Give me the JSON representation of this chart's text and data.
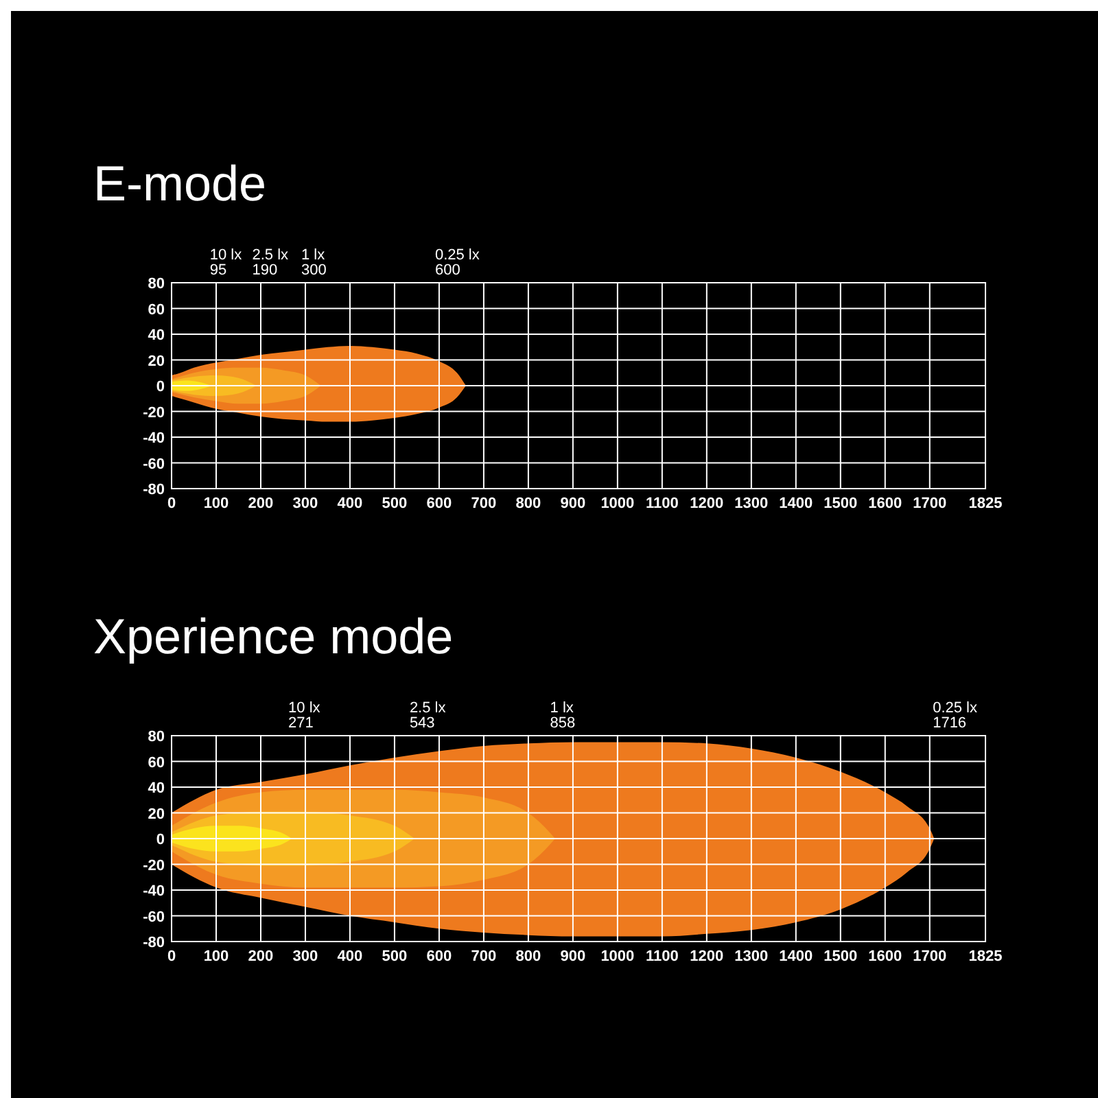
{
  "chart_data": [
    {
      "type": "area",
      "title": "E-mode",
      "xlim": [
        0,
        1825
      ],
      "xticks": [
        0,
        100,
        200,
        300,
        400,
        500,
        600,
        700,
        800,
        900,
        1000,
        1100,
        1200,
        1300,
        1400,
        1500,
        1600,
        1700,
        1825
      ],
      "ylim": [
        -80,
        80
      ],
      "yticks": [
        -80,
        -60,
        -40,
        -20,
        0,
        20,
        40,
        60,
        80
      ],
      "grid": true,
      "annotations": [
        "10 lx\n95",
        "2.5 lx\n190",
        "1 lx\n300",
        "0.25 lx\n600"
      ],
      "series": [
        {
          "color": "#ee7a1e",
          "x": [
            0,
            20,
            50,
            100,
            150,
            200,
            250,
            300,
            350,
            400,
            450,
            500,
            550,
            600,
            640,
            660
          ],
          "values": [
            8,
            10,
            14,
            18,
            21,
            24,
            26,
            28,
            30,
            31,
            30,
            28,
            25,
            19,
            10,
            0
          ]
        },
        {
          "color": "#ee7a1e",
          "x": [
            0,
            20,
            50,
            100,
            150,
            200,
            250,
            300,
            350,
            400,
            450,
            500,
            550,
            600,
            640,
            660
          ],
          "values": [
            -8,
            -10,
            -13,
            -18,
            -21,
            -24,
            -26,
            -27,
            -28,
            -28,
            -27,
            -25,
            -22,
            -17,
            -9,
            0
          ]
        },
        {
          "color": "#f49a24",
          "x": [
            0,
            50,
            100,
            150,
            200,
            250,
            300,
            335
          ],
          "values": [
            5,
            10,
            13,
            14,
            14,
            12,
            8,
            0
          ]
        },
        {
          "color": "#f49a24",
          "x": [
            0,
            50,
            100,
            150,
            200,
            250,
            300,
            335
          ],
          "values": [
            -5,
            -9,
            -12,
            -14,
            -14,
            -12,
            -8,
            0
          ]
        },
        {
          "color": "#f8bb22",
          "x": [
            0,
            50,
            100,
            150,
            190
          ],
          "values": [
            4,
            7,
            8,
            6,
            0
          ]
        },
        {
          "color": "#f8bb22",
          "x": [
            0,
            50,
            100,
            150,
            190
          ],
          "values": [
            -4,
            -7,
            -8,
            -6,
            0
          ]
        },
        {
          "color": "#fbe41c",
          "x": [
            0,
            30,
            60,
            90
          ],
          "values": [
            3,
            4,
            3,
            0
          ]
        },
        {
          "color": "#fbe31e",
          "x": [
            0,
            30,
            60,
            90
          ],
          "values": [
            -3,
            -4,
            -3,
            0
          ]
        }
      ]
    },
    {
      "type": "area",
      "title": "Xperience mode",
      "xlim": [
        0,
        1825
      ],
      "xticks": [
        0,
        100,
        200,
        300,
        400,
        500,
        600,
        700,
        800,
        900,
        1000,
        1100,
        1200,
        1300,
        1400,
        1500,
        1600,
        1700,
        1825
      ],
      "ylim": [
        -80,
        80
      ],
      "yticks": [
        -80,
        -60,
        -40,
        -20,
        0,
        20,
        40,
        60,
        80
      ],
      "grid": true,
      "annotations": [
        "10 lx\n271",
        "2.5 lx\n543",
        "1 lx\n858",
        "0.25 lx\n1716"
      ],
      "series": [
        {
          "color": "#ee7a1e",
          "x": [
            0,
            50,
            100,
            200,
            300,
            400,
            500,
            600,
            700,
            800,
            900,
            1000,
            1100,
            1200,
            1300,
            1400,
            1500,
            1600,
            1650,
            1700,
            1710
          ],
          "values": [
            20,
            30,
            38,
            44,
            50,
            57,
            63,
            68,
            72,
            74,
            75,
            75,
            75,
            74,
            70,
            63,
            52,
            36,
            25,
            8,
            0
          ]
        },
        {
          "color": "#ee7a1e",
          "x": [
            0,
            50,
            100,
            200,
            300,
            400,
            500,
            600,
            700,
            800,
            900,
            1000,
            1100,
            1200,
            1300,
            1400,
            1500,
            1600,
            1650,
            1700,
            1710
          ],
          "values": [
            -20,
            -30,
            -38,
            -46,
            -53,
            -60,
            -65,
            -70,
            -73,
            -75,
            -76,
            -76,
            -76,
            -74,
            -71,
            -65,
            -55,
            -38,
            -26,
            -8,
            0
          ]
        },
        {
          "color": "#f49a24",
          "x": [
            0,
            100,
            200,
            300,
            400,
            500,
            600,
            700,
            800,
            850,
            860
          ],
          "values": [
            10,
            28,
            36,
            38,
            38,
            38,
            36,
            32,
            20,
            4,
            0
          ]
        },
        {
          "color": "#f49a24",
          "x": [
            0,
            100,
            200,
            300,
            400,
            500,
            600,
            700,
            800,
            850,
            860
          ],
          "values": [
            -10,
            -28,
            -35,
            -38,
            -38,
            -38,
            -37,
            -32,
            -20,
            -4,
            0
          ]
        },
        {
          "color": "#f8bb22",
          "x": [
            0,
            100,
            200,
            300,
            400,
            500,
            545
          ],
          "values": [
            5,
            18,
            21,
            21,
            18,
            10,
            0
          ]
        },
        {
          "color": "#f8bb22",
          "x": [
            0,
            100,
            200,
            300,
            400,
            500,
            545
          ],
          "values": [
            -5,
            -18,
            -21,
            -21,
            -18,
            -10,
            0
          ]
        },
        {
          "color": "#fbe41c",
          "x": [
            0,
            50,
            100,
            150,
            200,
            250,
            270
          ],
          "values": [
            3,
            8,
            10,
            10,
            8,
            4,
            0
          ]
        },
        {
          "color": "#fbe31e",
          "x": [
            0,
            50,
            100,
            150,
            200,
            250,
            270
          ],
          "values": [
            -3,
            -8,
            -10,
            -10,
            -8,
            -4,
            0
          ]
        }
      ]
    }
  ]
}
